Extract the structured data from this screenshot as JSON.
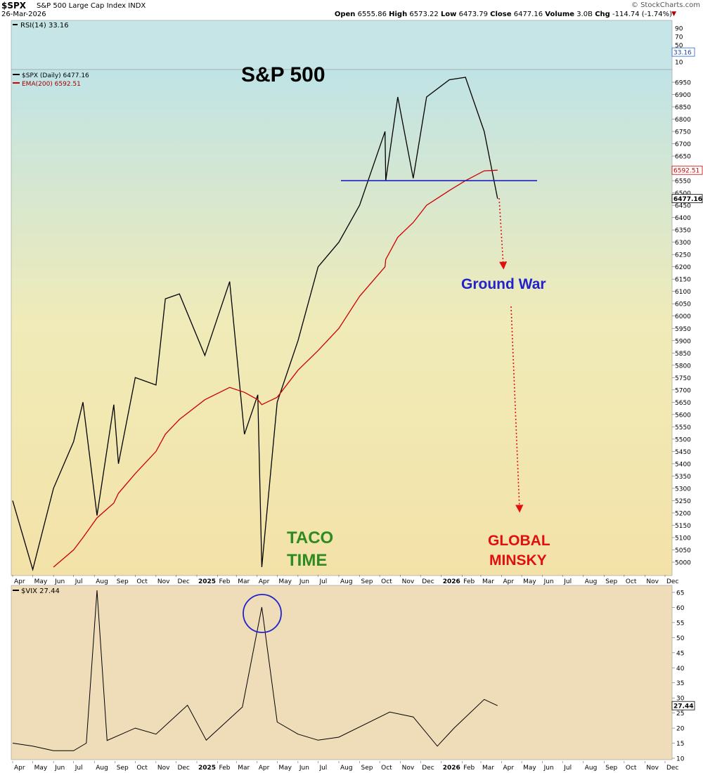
{
  "header": {
    "symbol": "$SPX",
    "name": "S&P 500 Large Cap Index  INDX",
    "date": "26-Mar-2026",
    "logo": "© StockCharts.com",
    "open_label": "Open",
    "open": "6555.86",
    "high_label": "High",
    "high": "6573.22",
    "low_label": "Low",
    "low": "6473.79",
    "close_label": "Close",
    "close": "6477.16",
    "volume_label": "Volume",
    "volume": "3.0B",
    "chg_label": "Chg",
    "chg": "-114.74 (-1.74%)",
    "chg_icon": "triangle-down-icon"
  },
  "rsi": {
    "label": "RSI(14) 33.16",
    "value": "33.16",
    "ticks": [
      "90",
      "70",
      "50",
      "30",
      "10"
    ]
  },
  "price_legend": {
    "spx": "$SPX (Daily) 6477.16",
    "ema": "EMA(200) 6592.51"
  },
  "annotations": {
    "title": "S&P 500",
    "ground_war": "Ground War",
    "taco_1": "TACO",
    "taco_2": "TIME",
    "global": "GLOBAL",
    "minsky": "MINSKY"
  },
  "price_scale": {
    "ticks": [
      "6950",
      "6900",
      "6850",
      "6800",
      "6750",
      "6700",
      "6650",
      "6600",
      "6550",
      "6500",
      "6450",
      "6400",
      "6350",
      "6300",
      "6250",
      "6200",
      "6150",
      "6100",
      "6050",
      "6000",
      "5950",
      "5900",
      "5850",
      "5800",
      "5750",
      "5700",
      "5650",
      "5600",
      "5550",
      "5500",
      "5450",
      "5400",
      "5350",
      "5300",
      "5250",
      "5200",
      "5150",
      "5100",
      "5050",
      "5000"
    ],
    "last_close_tag": "6477.16",
    "ema_tag": "6592.51"
  },
  "x_axis": [
    "Apr",
    "May",
    "Jun",
    "Jul",
    "Aug",
    "Sep",
    "Oct",
    "Nov",
    "Dec",
    "2025",
    "Feb",
    "Mar",
    "Apr",
    "May",
    "Jun",
    "Jul",
    "Aug",
    "Sep",
    "Oct",
    "Nov",
    "Dec",
    "2026",
    "Feb",
    "Mar",
    "Apr",
    "May",
    "Jun",
    "Jul",
    "Aug",
    "Sep",
    "Oct",
    "Nov",
    "Dec"
  ],
  "vix": {
    "label": "$VIX 27.44",
    "value": "27.44",
    "ticks": [
      "65",
      "60",
      "55",
      "50",
      "45",
      "40",
      "35",
      "30",
      "25",
      "20",
      "15",
      "10"
    ]
  },
  "colors": {
    "price_line": "#000000",
    "ema_line": "#cc0000",
    "support_line": "#2020c0",
    "ground_war": "#2222cc",
    "taco": "#2e8b22",
    "global_minsky": "#e01010",
    "arrow": "#e01010"
  },
  "chart_data": [
    {
      "type": "line",
      "title": "S&P 500",
      "x": [
        "2024-04-01",
        "2024-05-01",
        "2024-06-01",
        "2024-07-01",
        "2024-07-15",
        "2024-08-05",
        "2024-08-30",
        "2024-09-06",
        "2024-10-01",
        "2024-11-01",
        "2024-11-15",
        "2024-12-06",
        "2025-01-13",
        "2025-02-19",
        "2025-03-13",
        "2025-04-02",
        "2025-04-08",
        "2025-05-01",
        "2025-06-01",
        "2025-07-01",
        "2025-08-01",
        "2025-09-01",
        "2025-10-09",
        "2025-10-10",
        "2025-10-28",
        "2025-11-20",
        "2025-12-10",
        "2026-01-13",
        "2026-02-06",
        "2026-03-06",
        "2026-03-26"
      ],
      "series": [
        {
          "name": "$SPX (Daily)",
          "values": [
            5250,
            4970,
            5300,
            5490,
            5650,
            5190,
            5640,
            5400,
            5750,
            5720,
            6070,
            6090,
            5840,
            6140,
            5520,
            5680,
            4980,
            5650,
            5900,
            6200,
            6300,
            6450,
            6750,
            6550,
            6890,
            6560,
            6890,
            6960,
            6970,
            6750,
            6477
          ]
        },
        {
          "name": "EMA(200)",
          "values": [
            null,
            null,
            4980,
            5050,
            5100,
            5180,
            5240,
            5280,
            5360,
            5450,
            5520,
            5580,
            5660,
            5710,
            5690,
            5660,
            5640,
            5670,
            5780,
            5860,
            5950,
            6080,
            6200,
            6230,
            6320,
            6380,
            6450,
            6510,
            6550,
            6590,
            6592.51
          ]
        }
      ],
      "support_level": 6550,
      "ylim": [
        4950,
        7000
      ],
      "rsi": 33.16,
      "grid": false,
      "legend": "top-left"
    },
    {
      "type": "line",
      "x": [
        "2024-04-01",
        "2024-05-01",
        "2024-06-01",
        "2024-07-01",
        "2024-07-20",
        "2024-08-05",
        "2024-08-20",
        "2024-10-01",
        "2024-11-01",
        "2024-12-18",
        "2025-01-15",
        "2025-03-10",
        "2025-04-08",
        "2025-05-01",
        "2025-06-01",
        "2025-07-01",
        "2025-08-01",
        "2025-10-16",
        "2025-11-20",
        "2025-12-26",
        "2026-01-20",
        "2026-03-06",
        "2026-03-26"
      ],
      "series": [
        {
          "name": "$VIX",
          "values": [
            15,
            14,
            12.5,
            12.5,
            15,
            65.7,
            15.9,
            20,
            18,
            27.6,
            16,
            27,
            60.1,
            22,
            18,
            16,
            17,
            25.3,
            23.7,
            14,
            20,
            29.5,
            27.44
          ]
        }
      ],
      "ylim": [
        10,
        67
      ],
      "grid": false,
      "legend": "top-left"
    }
  ]
}
